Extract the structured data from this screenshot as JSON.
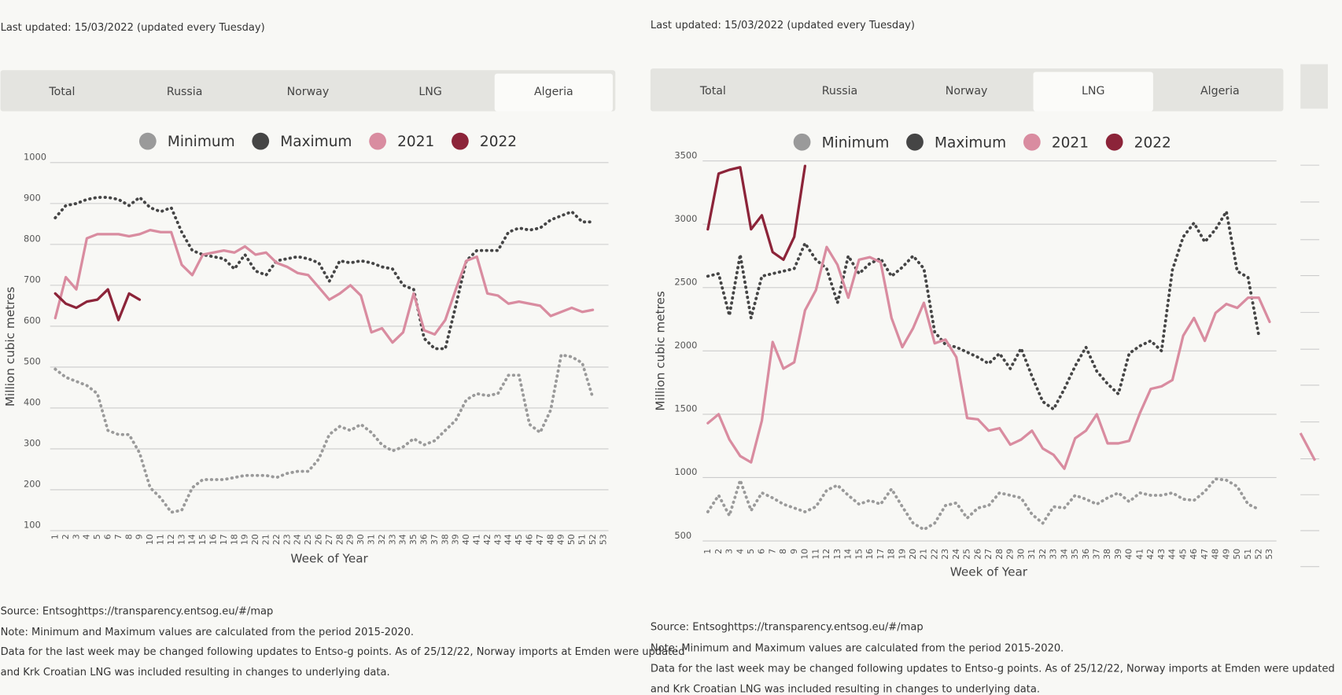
{
  "panels": [
    {
      "last_updated": "Last updated: 15/03/2022 (updated every Tuesday)",
      "tabs": [
        "Total",
        "Russia",
        "Norway",
        "LNG",
        "Algeria"
      ],
      "active_tab": 4,
      "source": "Source: Entsog,",
      "source_url": "https://transparency.entsog.eu/#/map",
      "notes": [
        "Note: Minimum and Maximum values are calculated from the period 2015-2020.",
        "Data for the last week may be changed following updates to Entso-g points. As of 25/12/22, Norway imports at Emden were updated",
        "and Krk Croatian LNG was included resulting in changes to underlying data."
      ]
    },
    {
      "last_updated": "Last updated: 15/03/2022 (updated every Tuesday)",
      "tabs": [
        "Total",
        "Russia",
        "Norway",
        "LNG",
        "Algeria"
      ],
      "active_tab": 3,
      "source": "Source: Entsog,",
      "source_url": "https://transparency.entsog.eu/#/map",
      "notes": [
        "Note: Minimum and Maximum values are calculated from the period 2015-2020.",
        "Data for the last week may be changed following updates to Entso-g points. As of 25/12/22, Norway imports at Emden were updated",
        "and Krk Croatian LNG was included resulting in changes to underlying data."
      ]
    }
  ],
  "chart_data": [
    {
      "type": "line",
      "x_label": "Week of Year",
      "y_label": "Million cubic metres",
      "categories": [
        "1",
        "2",
        "3",
        "4",
        "5",
        "6",
        "7",
        "8",
        "9",
        "10",
        "11",
        "12",
        "13",
        "14",
        "15",
        "16",
        "17",
        "18",
        "19",
        "20",
        "21",
        "22",
        "23",
        "24",
        "25",
        "26",
        "27",
        "28",
        "29",
        "30",
        "31",
        "32",
        "33",
        "34",
        "35",
        "36",
        "37",
        "38",
        "39",
        "40",
        "41",
        "42",
        "43",
        "44",
        "45",
        "46",
        "47",
        "48",
        "49",
        "50",
        "51",
        "52",
        "53"
      ],
      "ylim": [
        100,
        1000
      ],
      "yticks": [
        100,
        200,
        300,
        400,
        500,
        600,
        700,
        800,
        900,
        1000
      ],
      "grid": true,
      "series": [
        {
          "name": "Minimum",
          "color": "#9a9a9a",
          "dotted": true,
          "values": [
            495,
            475,
            465,
            455,
            435,
            345,
            335,
            335,
            290,
            205,
            180,
            145,
            150,
            205,
            225,
            225,
            225,
            230,
            235,
            235,
            235,
            230,
            240,
            245,
            245,
            275,
            335,
            355,
            345,
            360,
            340,
            310,
            295,
            305,
            325,
            310,
            320,
            345,
            370,
            420,
            435,
            430,
            435,
            480,
            480,
            360,
            340,
            395,
            530,
            525,
            510,
            425,
            null
          ]
        },
        {
          "name": "Maximum",
          "color": "#454545",
          "dotted": true,
          "values": [
            865,
            895,
            900,
            910,
            915,
            915,
            910,
            895,
            915,
            890,
            880,
            890,
            830,
            785,
            775,
            770,
            765,
            740,
            775,
            735,
            725,
            760,
            765,
            770,
            765,
            755,
            710,
            760,
            755,
            760,
            755,
            745,
            740,
            700,
            690,
            570,
            545,
            545,
            650,
            760,
            785,
            785,
            785,
            830,
            840,
            835,
            840,
            860,
            870,
            880,
            855,
            855,
            null
          ]
        },
        {
          "name": "2021",
          "color": "#d98ca0",
          "dotted": false,
          "values": [
            620,
            720,
            690,
            815,
            825,
            825,
            825,
            820,
            825,
            835,
            830,
            830,
            750,
            725,
            775,
            780,
            785,
            780,
            795,
            775,
            780,
            755,
            745,
            730,
            725,
            695,
            665,
            680,
            700,
            675,
            585,
            595,
            560,
            585,
            680,
            590,
            580,
            615,
            690,
            760,
            770,
            680,
            675,
            655,
            660,
            655,
            650,
            625,
            635,
            645,
            635,
            640,
            null
          ]
        },
        {
          "name": "2022",
          "color": "#8c2439",
          "dotted": false,
          "values": [
            680,
            655,
            645,
            660,
            665,
            690,
            615,
            680,
            665,
            null,
            null,
            null,
            null,
            null,
            null,
            null,
            null,
            null,
            null,
            null,
            null,
            null,
            null,
            null,
            null,
            null,
            null,
            null,
            null,
            null,
            null,
            null,
            null,
            null,
            null,
            null,
            null,
            null,
            null,
            null,
            null,
            null,
            null,
            null,
            null,
            null,
            null,
            null,
            null,
            null,
            null,
            null,
            null
          ]
        }
      ]
    },
    {
      "type": "line",
      "x_label": "Week of Year",
      "y_label": "Million cubic metres",
      "categories": [
        "1",
        "2",
        "3",
        "4",
        "5",
        "6",
        "7",
        "8",
        "9",
        "10",
        "11",
        "12",
        "13",
        "14",
        "15",
        "16",
        "17",
        "18",
        "19",
        "20",
        "21",
        "22",
        "23",
        "24",
        "25",
        "26",
        "27",
        "28",
        "29",
        "30",
        "31",
        "32",
        "33",
        "34",
        "35",
        "36",
        "37",
        "38",
        "39",
        "40",
        "41",
        "42",
        "43",
        "44",
        "45",
        "46",
        "47",
        "48",
        "49",
        "50",
        "51",
        "52",
        "53"
      ],
      "ylim": [
        500,
        3500
      ],
      "yticks": [
        500,
        1000,
        1500,
        2000,
        2500,
        3000,
        3500
      ],
      "grid": true,
      "series": [
        {
          "name": "Minimum",
          "color": "#9a9a9a",
          "dotted": true,
          "values": [
            730,
            860,
            700,
            980,
            740,
            880,
            840,
            790,
            760,
            730,
            770,
            900,
            940,
            860,
            790,
            820,
            790,
            910,
            770,
            640,
            590,
            640,
            780,
            800,
            680,
            760,
            780,
            880,
            860,
            840,
            710,
            640,
            770,
            760,
            860,
            830,
            790,
            840,
            880,
            810,
            880,
            860,
            860,
            880,
            830,
            820,
            890,
            990,
            980,
            930,
            790,
            750,
            null
          ]
        },
        {
          "name": "Maximum",
          "color": "#454545",
          "dotted": true,
          "values": [
            2590,
            2610,
            2280,
            2760,
            2260,
            2590,
            2610,
            2630,
            2650,
            2850,
            2720,
            2650,
            2380,
            2750,
            2610,
            2690,
            2730,
            2590,
            2660,
            2750,
            2650,
            2150,
            2050,
            2030,
            1990,
            1950,
            1900,
            1980,
            1860,
            2020,
            1800,
            1600,
            1540,
            1700,
            1880,
            2030,
            1840,
            1740,
            1660,
            1980,
            2040,
            2080,
            2000,
            2640,
            2900,
            3010,
            2860,
            2960,
            3100,
            2630,
            2580,
            2120,
            null
          ]
        },
        {
          "name": "2021",
          "color": "#d98ca0",
          "dotted": false,
          "values": [
            1430,
            1500,
            1300,
            1170,
            1120,
            1450,
            2070,
            1860,
            1910,
            2320,
            2480,
            2820,
            2680,
            2420,
            2720,
            2740,
            2700,
            2260,
            2030,
            2180,
            2380,
            2060,
            2090,
            1950,
            1470,
            1460,
            1370,
            1390,
            1260,
            1300,
            1370,
            1230,
            1180,
            1070,
            1310,
            1370,
            1500,
            1270,
            1270,
            1290,
            1510,
            1700,
            1720,
            1770,
            2120,
            2260,
            2080,
            2300,
            2370,
            2340,
            2420,
            2420,
            2230
          ]
        },
        {
          "name": "2022",
          "color": "#8c2439",
          "dotted": false,
          "values": [
            2960,
            3400,
            3430,
            3450,
            2960,
            3070,
            2780,
            2720,
            2900,
            3460,
            null,
            null,
            null,
            null,
            null,
            null,
            null,
            null,
            null,
            null,
            null,
            null,
            null,
            null,
            null,
            null,
            null,
            null,
            null,
            null,
            null,
            null,
            null,
            null,
            null,
            null,
            null,
            null,
            null,
            null,
            null,
            null,
            null,
            null,
            null,
            null,
            null,
            null,
            null,
            null,
            null,
            null,
            null
          ]
        }
      ]
    }
  ]
}
